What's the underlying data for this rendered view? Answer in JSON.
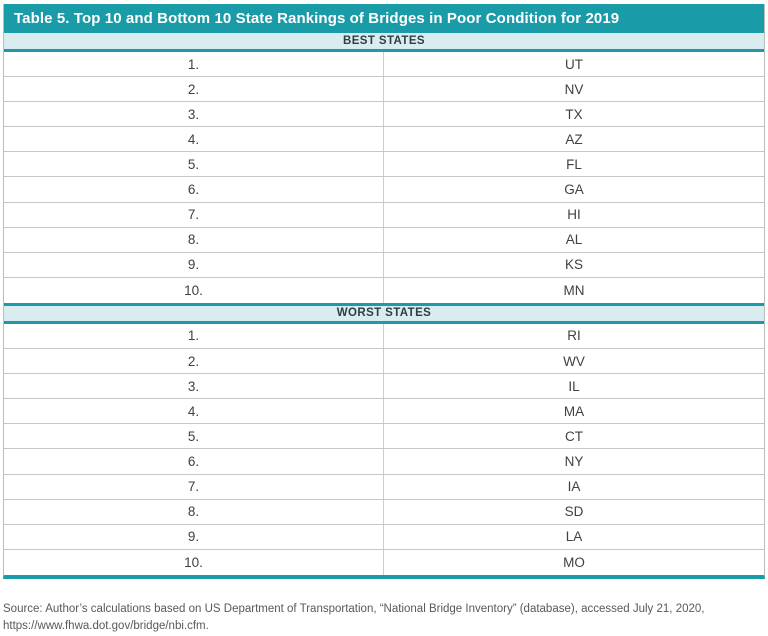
{
  "table": {
    "title": "Table 5. Top 10 and Bottom 10 State Rankings of Bridges in Poor Condition for 2019",
    "sections": [
      {
        "header": "BEST STATES",
        "rows": [
          {
            "rank": "1.",
            "state": "UT"
          },
          {
            "rank": "2.",
            "state": "NV"
          },
          {
            "rank": "3.",
            "state": "TX"
          },
          {
            "rank": "4.",
            "state": "AZ"
          },
          {
            "rank": "5.",
            "state": "FL"
          },
          {
            "rank": "6.",
            "state": "GA"
          },
          {
            "rank": "7.",
            "state": "HI"
          },
          {
            "rank": "8.",
            "state": "AL"
          },
          {
            "rank": "9.",
            "state": "KS"
          },
          {
            "rank": "10.",
            "state": "MN"
          }
        ]
      },
      {
        "header": "WORST STATES",
        "rows": [
          {
            "rank": "1.",
            "state": "RI"
          },
          {
            "rank": "2.",
            "state": "WV"
          },
          {
            "rank": "3.",
            "state": "IL"
          },
          {
            "rank": "4.",
            "state": "MA"
          },
          {
            "rank": "5.",
            "state": "CT"
          },
          {
            "rank": "6.",
            "state": "NY"
          },
          {
            "rank": "7.",
            "state": "IA"
          },
          {
            "rank": "8.",
            "state": "SD"
          },
          {
            "rank": "9.",
            "state": "LA"
          },
          {
            "rank": "10.",
            "state": "MO"
          }
        ]
      }
    ]
  },
  "source": {
    "line1": "Source: Author’s calculations based on US Department of Transportation, “National Bridge Inventory” (database), accessed July 21, 2020,",
    "line2": "https://www.fhwa.dot.gov/bridge/nbi.cfm."
  },
  "colors": {
    "teal": "#1A9BA8",
    "band_background": "#D9EDF0",
    "band_text": "#2E3D49",
    "row_text": "#414042",
    "row_border": "#C6C6C6",
    "source_text": "#58595B"
  }
}
